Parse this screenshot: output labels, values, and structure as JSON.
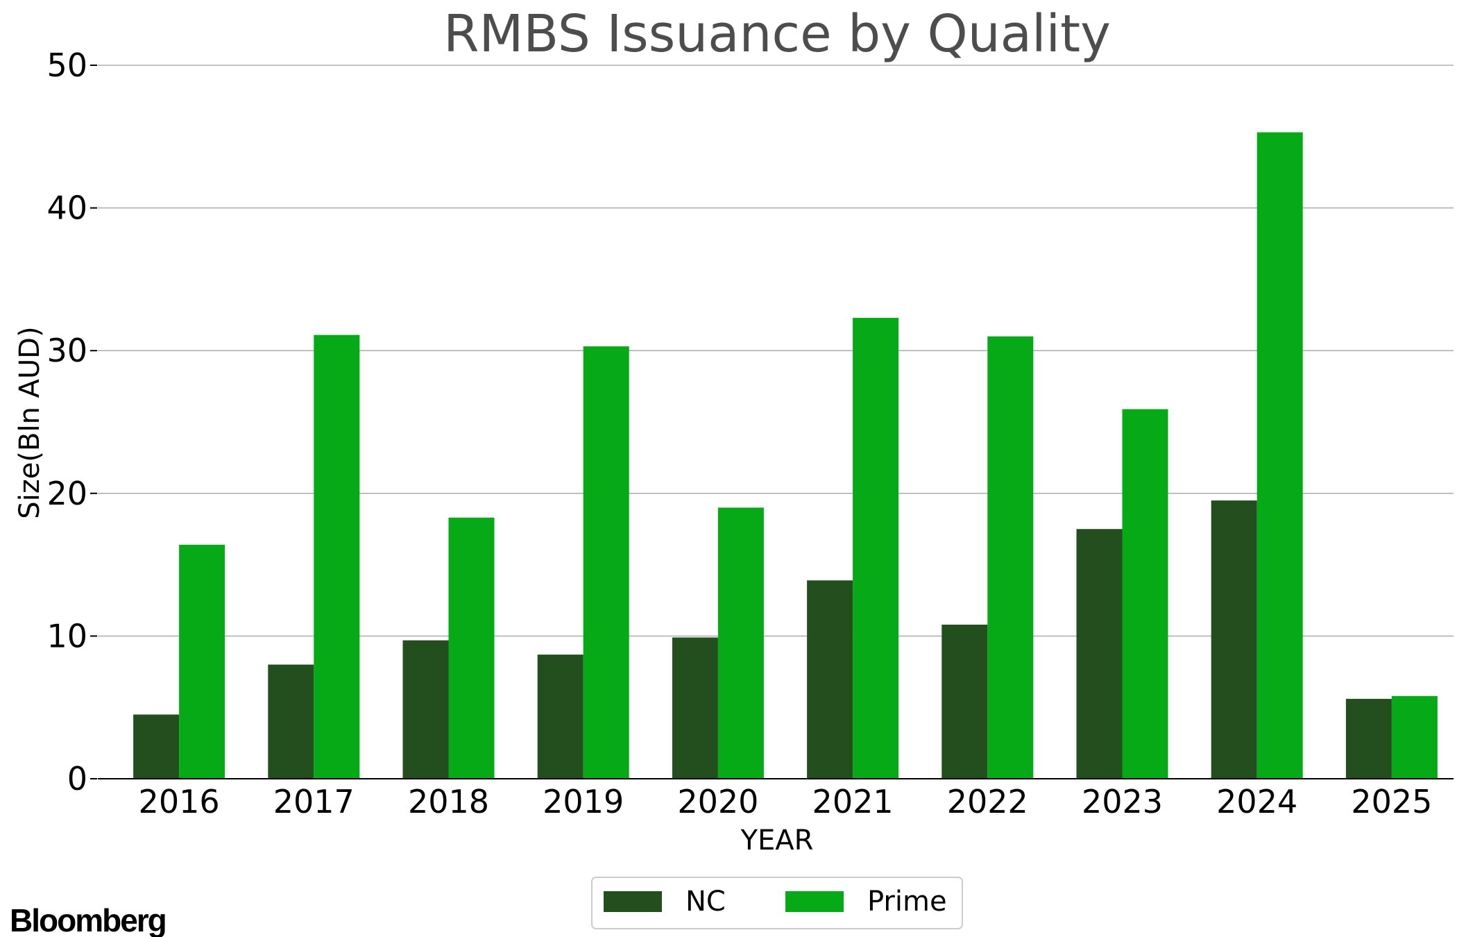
{
  "brand": "Bloomberg",
  "chart_data": {
    "type": "bar",
    "title": "RMBS Issuance by Quality",
    "xlabel": "YEAR",
    "ylabel": "Size(Bln AUD)",
    "categories": [
      "2016",
      "2017",
      "2018",
      "2019",
      "2020",
      "2021",
      "2022",
      "2023",
      "2024",
      "2025"
    ],
    "series": [
      {
        "name": "NC",
        "color": "#234f1e",
        "values": [
          4.5,
          8.0,
          9.7,
          8.7,
          9.9,
          13.9,
          10.8,
          17.5,
          19.5,
          5.6
        ]
      },
      {
        "name": "Prime",
        "color": "#05aa16",
        "values": [
          16.4,
          31.1,
          18.3,
          30.3,
          19.0,
          32.3,
          31.0,
          25.9,
          45.3,
          5.8
        ]
      }
    ],
    "ylim": [
      0,
      50
    ],
    "yticks": [
      0,
      10,
      20,
      30,
      40,
      50
    ],
    "grid": true,
    "legend_position": "bottom-center"
  }
}
